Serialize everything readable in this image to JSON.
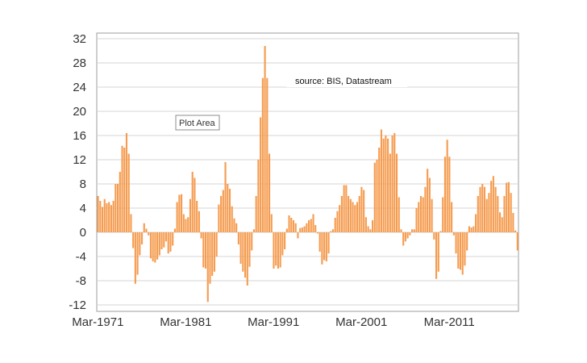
{
  "chart_data": {
    "type": "bar",
    "title": "",
    "xlabel": "",
    "ylabel": "",
    "ylim": [
      -12,
      32
    ],
    "yticks": [
      32,
      28,
      24,
      20,
      16,
      12,
      8,
      4,
      0,
      -4,
      -8,
      -12
    ],
    "xtick_labels": [
      "Mar-1971",
      "Mar-1981",
      "Mar-1991",
      "Mar-2001",
      "Mar-2011"
    ],
    "x_start": "Mar-1971",
    "x_end": "Dec-2018",
    "frequency": "quarterly",
    "grid": true,
    "legend": "none",
    "annotations": {
      "source": "source:  BIS, Datastream",
      "tooltip": "Plot Area"
    },
    "values": [
      6.0,
      5.2,
      4.2,
      5.5,
      4.8,
      5.0,
      4.5,
      5.2,
      8.0,
      8.0,
      10.0,
      14.3,
      14.0,
      16.4,
      13.0,
      3.0,
      -2.6,
      -8.5,
      -7.0,
      -3.8,
      -2.0,
      1.5,
      0.6,
      -0.5,
      -4.3,
      -4.8,
      -5.0,
      -4.5,
      -3.8,
      -2.8,
      -2.5,
      -1.5,
      -3.5,
      -3.2,
      -2.2,
      0.6,
      5.0,
      6.2,
      6.3,
      3.0,
      2.2,
      2.5,
      5.5,
      10.0,
      9.0,
      5.2,
      3.5,
      -1.0,
      -5.8,
      -6.0,
      -11.5,
      -8.5,
      -7.2,
      -6.5,
      -4.0,
      4.6,
      6.0,
      7.0,
      11.6,
      8.0,
      7.2,
      4.3,
      2.3,
      1.5,
      -2.0,
      -5.2,
      -6.5,
      -7.5,
      -8.8,
      -5.7,
      -3.0,
      0.5,
      6.0,
      12.0,
      19.0,
      25.5,
      30.8,
      25.5,
      13.0,
      3.0,
      -6.0,
      -5.5,
      -6.0,
      -5.8,
      -3.8,
      -2.8,
      0.6,
      2.8,
      2.4,
      2.0,
      1.5,
      -1.0,
      0.7,
      0.8,
      1.0,
      1.5,
      2.0,
      2.2,
      3.0,
      1.2,
      -0.2,
      -3.2,
      -5.3,
      -4.6,
      -4.8,
      -3.5,
      0.2,
      0.5,
      2.4,
      3.5,
      4.5,
      6.0,
      7.8,
      7.8,
      6.0,
      5.5,
      5.0,
      4.5,
      5.0,
      6.0,
      7.5,
      7.0,
      2.5,
      1.0,
      0.5,
      2.0,
      11.5,
      12.0,
      14.0,
      17.0,
      15.5,
      16.0,
      15.5,
      13.0,
      16.0,
      16.4,
      13.0,
      5.8,
      0.5,
      -2.2,
      -1.5,
      -1.0,
      -0.5,
      0.5,
      0.5,
      4.0,
      5.0,
      6.0,
      5.8,
      7.5,
      10.5,
      9.0,
      5.5,
      -1.2,
      -7.7,
      -6.5,
      0.2,
      5.8,
      12.5,
      15.3,
      12.5,
      5.0,
      -0.5,
      -3.5,
      -6.0,
      -6.2,
      -7.0,
      -5.5,
      -3.0,
      1.0,
      0.8,
      1.0,
      3.0,
      6.0,
      7.5,
      8.0,
      7.5,
      5.5,
      6.5,
      8.5,
      9.3,
      7.5,
      6.0,
      3.3,
      2.5,
      6.0,
      8.2,
      8.3,
      6.5,
      3.2,
      0.3,
      -3.0
    ],
    "colors": {
      "bar": "#f59c50",
      "bar_edge": "#ffffff",
      "grid": "#d4d4d4",
      "plot_border": "#9e9e9e",
      "tick_text": "#333333"
    }
  }
}
